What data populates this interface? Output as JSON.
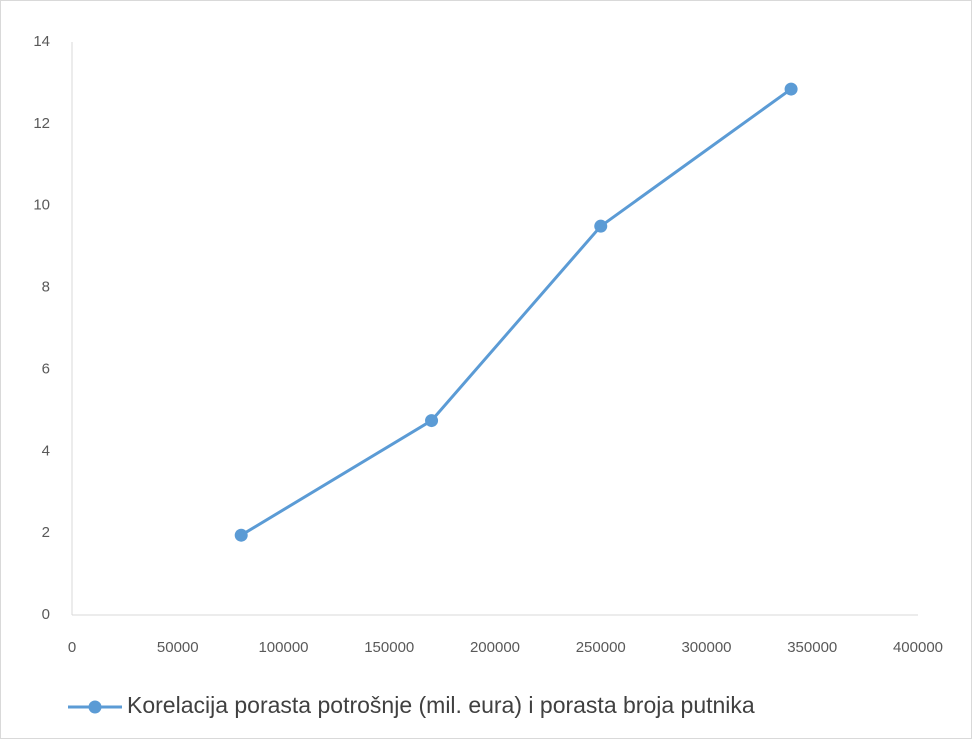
{
  "chart_data": {
    "type": "line",
    "x": [
      80000,
      170000,
      250000,
      340000
    ],
    "series": [
      {
        "name": "Korelacija porasta potrošnje (mil. eura) i porasta broja putnika",
        "color": "#5b9bd5",
        "values": [
          1.95,
          4.75,
          9.5,
          12.85
        ]
      }
    ],
    "xlim": [
      0,
      400000
    ],
    "xticks": [
      0,
      50000,
      100000,
      150000,
      200000,
      250000,
      300000,
      350000,
      400000
    ],
    "ylim": [
      0,
      14
    ],
    "yticks": [
      0,
      2,
      4,
      6,
      8,
      10,
      12,
      14
    ],
    "grid": false,
    "legend": "bottom"
  }
}
